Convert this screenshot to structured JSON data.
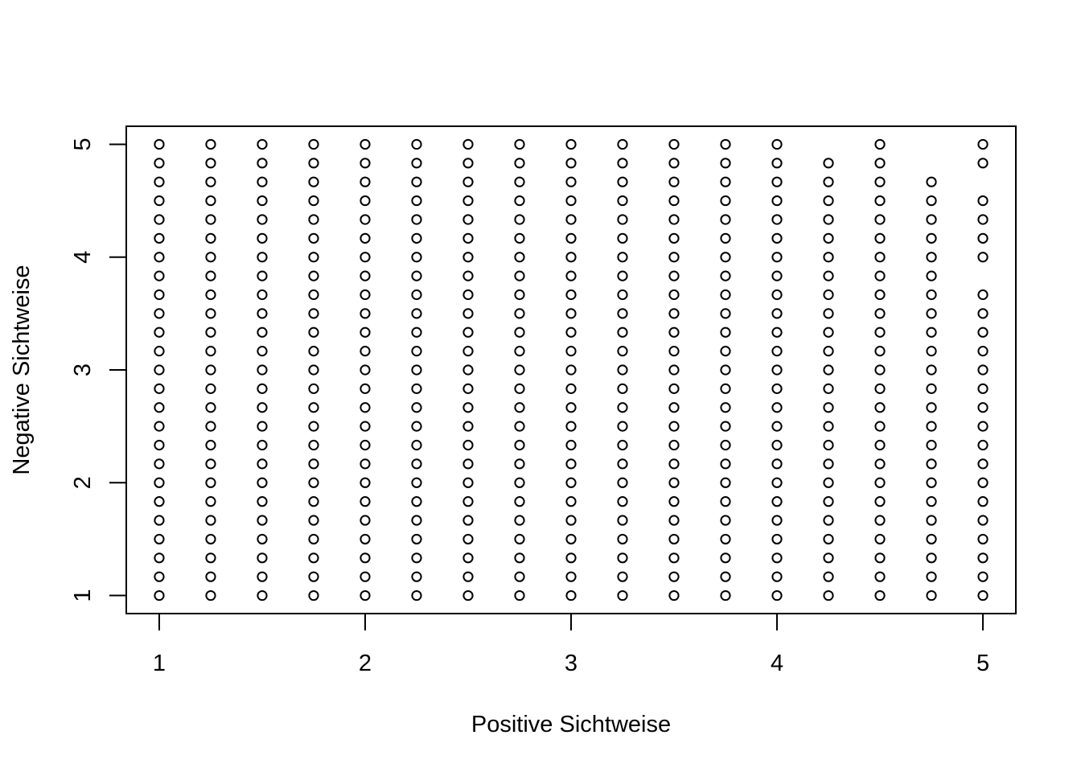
{
  "chart_data": {
    "type": "scatter",
    "title": "",
    "xlabel": "Positive Sichtweise",
    "ylabel": "Negative Sichtweise",
    "xlim": [
      0.84,
      5.16
    ],
    "ylim": [
      0.84,
      5.16
    ],
    "xticks": [
      "1",
      "2",
      "3",
      "4",
      "5"
    ],
    "yticks": [
      "1",
      "2",
      "3",
      "4",
      "5"
    ],
    "grid": false,
    "marker": "open-circle",
    "color": "#000000",
    "points": [
      {
        "x": 1.0,
        "y": [
          1.0,
          1.1667,
          1.3333,
          1.5,
          1.6667,
          1.8333,
          2.0,
          2.1667,
          2.3333,
          2.5,
          2.6667,
          2.8333,
          3.0,
          3.1667,
          3.3333,
          3.5,
          3.6667,
          3.8333,
          4.0,
          4.1667,
          4.3333,
          4.5,
          4.6667,
          4.8333,
          5.0
        ]
      },
      {
        "x": 1.25,
        "y": [
          1.0,
          1.1667,
          1.3333,
          1.5,
          1.6667,
          1.8333,
          2.0,
          2.1667,
          2.3333,
          2.5,
          2.6667,
          2.8333,
          3.0,
          3.1667,
          3.3333,
          3.5,
          3.6667,
          3.8333,
          4.0,
          4.1667,
          4.3333,
          4.5,
          4.6667,
          4.8333,
          5.0
        ]
      },
      {
        "x": 1.5,
        "y": [
          1.0,
          1.1667,
          1.3333,
          1.5,
          1.6667,
          1.8333,
          2.0,
          2.1667,
          2.3333,
          2.5,
          2.6667,
          2.8333,
          3.0,
          3.1667,
          3.3333,
          3.5,
          3.6667,
          3.8333,
          4.0,
          4.1667,
          4.3333,
          4.5,
          4.6667,
          4.8333,
          5.0
        ]
      },
      {
        "x": 1.75,
        "y": [
          1.0,
          1.1667,
          1.3333,
          1.5,
          1.6667,
          1.8333,
          2.0,
          2.1667,
          2.3333,
          2.5,
          2.6667,
          2.8333,
          3.0,
          3.1667,
          3.3333,
          3.5,
          3.6667,
          3.8333,
          4.0,
          4.1667,
          4.3333,
          4.5,
          4.6667,
          4.8333,
          5.0
        ]
      },
      {
        "x": 2.0,
        "y": [
          1.0,
          1.1667,
          1.3333,
          1.5,
          1.6667,
          1.8333,
          2.0,
          2.1667,
          2.3333,
          2.5,
          2.6667,
          2.8333,
          3.0,
          3.1667,
          3.3333,
          3.5,
          3.6667,
          3.8333,
          4.0,
          4.1667,
          4.3333,
          4.5,
          4.6667,
          4.8333,
          5.0
        ]
      },
      {
        "x": 2.25,
        "y": [
          1.0,
          1.1667,
          1.3333,
          1.5,
          1.6667,
          1.8333,
          2.0,
          2.1667,
          2.3333,
          2.5,
          2.6667,
          2.8333,
          3.0,
          3.1667,
          3.3333,
          3.5,
          3.6667,
          3.8333,
          4.0,
          4.1667,
          4.3333,
          4.5,
          4.6667,
          4.8333,
          5.0
        ]
      },
      {
        "x": 2.5,
        "y": [
          1.0,
          1.1667,
          1.3333,
          1.5,
          1.6667,
          1.8333,
          2.0,
          2.1667,
          2.3333,
          2.5,
          2.6667,
          2.8333,
          3.0,
          3.1667,
          3.3333,
          3.5,
          3.6667,
          3.8333,
          4.0,
          4.1667,
          4.3333,
          4.5,
          4.6667,
          4.8333,
          5.0
        ]
      },
      {
        "x": 2.75,
        "y": [
          1.0,
          1.1667,
          1.3333,
          1.5,
          1.6667,
          1.8333,
          2.0,
          2.1667,
          2.3333,
          2.5,
          2.6667,
          2.8333,
          3.0,
          3.1667,
          3.3333,
          3.5,
          3.6667,
          3.8333,
          4.0,
          4.1667,
          4.3333,
          4.5,
          4.6667,
          4.8333,
          5.0
        ]
      },
      {
        "x": 3.0,
        "y": [
          1.0,
          1.1667,
          1.3333,
          1.5,
          1.6667,
          1.8333,
          2.0,
          2.1667,
          2.3333,
          2.5,
          2.6667,
          2.8333,
          3.0,
          3.1667,
          3.3333,
          3.5,
          3.6667,
          3.8333,
          4.0,
          4.1667,
          4.3333,
          4.5,
          4.6667,
          4.8333,
          5.0
        ]
      },
      {
        "x": 3.25,
        "y": [
          1.0,
          1.1667,
          1.3333,
          1.5,
          1.6667,
          1.8333,
          2.0,
          2.1667,
          2.3333,
          2.5,
          2.6667,
          2.8333,
          3.0,
          3.1667,
          3.3333,
          3.5,
          3.6667,
          3.8333,
          4.0,
          4.1667,
          4.3333,
          4.5,
          4.6667,
          4.8333,
          5.0
        ]
      },
      {
        "x": 3.5,
        "y": [
          1.0,
          1.1667,
          1.3333,
          1.5,
          1.6667,
          1.8333,
          2.0,
          2.1667,
          2.3333,
          2.5,
          2.6667,
          2.8333,
          3.0,
          3.1667,
          3.3333,
          3.5,
          3.6667,
          3.8333,
          4.0,
          4.1667,
          4.3333,
          4.5,
          4.6667,
          4.8333,
          5.0
        ]
      },
      {
        "x": 3.75,
        "y": [
          1.0,
          1.1667,
          1.3333,
          1.5,
          1.6667,
          1.8333,
          2.0,
          2.1667,
          2.3333,
          2.5,
          2.6667,
          2.8333,
          3.0,
          3.1667,
          3.3333,
          3.5,
          3.6667,
          3.8333,
          4.0,
          4.1667,
          4.3333,
          4.5,
          4.6667,
          4.8333,
          5.0
        ]
      },
      {
        "x": 4.0,
        "y": [
          1.0,
          1.1667,
          1.3333,
          1.5,
          1.6667,
          1.8333,
          2.0,
          2.1667,
          2.3333,
          2.5,
          2.6667,
          2.8333,
          3.0,
          3.1667,
          3.3333,
          3.5,
          3.6667,
          3.8333,
          4.0,
          4.1667,
          4.3333,
          4.5,
          4.6667,
          4.8333,
          5.0
        ]
      },
      {
        "x": 4.25,
        "y": [
          1.0,
          1.1667,
          1.3333,
          1.5,
          1.6667,
          1.8333,
          2.0,
          2.1667,
          2.3333,
          2.5,
          2.6667,
          2.8333,
          3.0,
          3.1667,
          3.3333,
          3.5,
          3.6667,
          3.8333,
          4.0,
          4.1667,
          4.3333,
          4.5,
          4.6667,
          4.8333
        ]
      },
      {
        "x": 4.5,
        "y": [
          1.0,
          1.1667,
          1.3333,
          1.5,
          1.6667,
          1.8333,
          2.0,
          2.1667,
          2.3333,
          2.5,
          2.6667,
          2.8333,
          3.0,
          3.1667,
          3.3333,
          3.5,
          3.6667,
          3.8333,
          4.0,
          4.1667,
          4.3333,
          4.5,
          4.6667,
          4.8333,
          5.0
        ]
      },
      {
        "x": 4.75,
        "y": [
          1.0,
          1.1667,
          1.3333,
          1.5,
          1.6667,
          1.8333,
          2.0,
          2.1667,
          2.3333,
          2.5,
          2.6667,
          2.8333,
          3.0,
          3.1667,
          3.3333,
          3.5,
          3.6667,
          3.8333,
          4.0,
          4.1667,
          4.3333,
          4.5,
          4.6667
        ]
      },
      {
        "x": 5.0,
        "y": [
          1.0,
          1.1667,
          1.3333,
          1.5,
          1.6667,
          1.8333,
          2.0,
          2.1667,
          2.3333,
          2.5,
          2.6667,
          2.8333,
          3.0,
          3.1667,
          3.3333,
          3.5,
          3.6667,
          4.0,
          4.1667,
          4.3333,
          4.5,
          4.8333,
          5.0
        ]
      }
    ]
  }
}
